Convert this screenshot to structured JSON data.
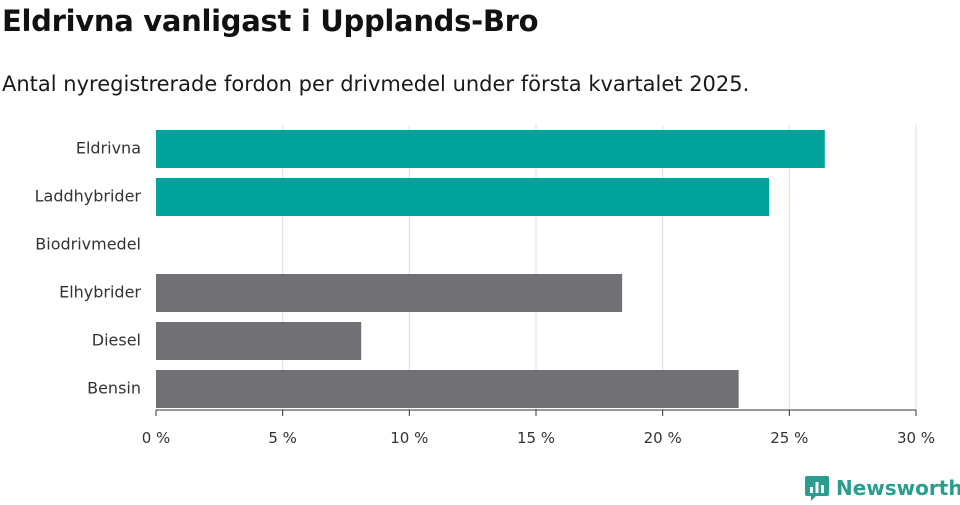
{
  "header": {
    "title": "Eldrivna vanligast i Upplands-Bro",
    "subtitle": "Antal nyregistrerade fordon per drivmedel under första kvartalet 2025."
  },
  "branding": {
    "logo_text": "Newsworthy",
    "logo_icon": "newsworthy-chart-bubble-icon",
    "color": "#2a9d8f"
  },
  "colors": {
    "highlight": "#00a39a",
    "default": "#707075",
    "grid": "#dddddd"
  },
  "chart_data": {
    "type": "bar",
    "orientation": "horizontal",
    "categories": [
      "Eldrivna",
      "Laddhybrider",
      "Biodrivmedel",
      "Elhybrider",
      "Diesel",
      "Bensin"
    ],
    "values": [
      26.4,
      24.2,
      0,
      18.4,
      8.1,
      23.0
    ],
    "highlight": [
      true,
      true,
      false,
      false,
      false,
      false
    ],
    "xlim": [
      0,
      30
    ],
    "xticks": [
      0,
      5,
      10,
      15,
      20,
      25,
      30
    ],
    "tick_labels": [
      "0 %",
      "5 %",
      "10 %",
      "15 %",
      "20 %",
      "25 %",
      "30 %"
    ],
    "grid": true
  }
}
